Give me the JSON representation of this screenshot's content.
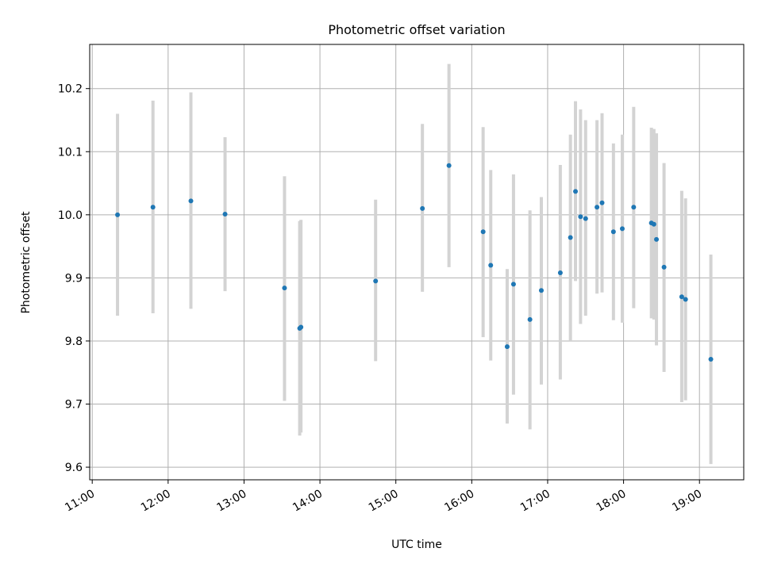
{
  "chart_data": {
    "type": "scatter",
    "title": "Photometric offset variation",
    "xlabel": "UTC time",
    "ylabel": "Photometric offset",
    "grid": true,
    "xlim": [
      "10:58",
      "19:35"
    ],
    "ylim": [
      9.58,
      10.27
    ],
    "x_ticks": [
      "11:00",
      "12:00",
      "13:00",
      "14:00",
      "15:00",
      "16:00",
      "17:00",
      "18:00",
      "19:00"
    ],
    "y_ticks": [
      "9.6",
      "9.7",
      "9.8",
      "9.9",
      "10.0",
      "10.1",
      "10.2"
    ],
    "point_color": "#1f77b4",
    "errorbar_color": "#d3d3d3",
    "points": [
      {
        "t": "11:20",
        "y": 10.0,
        "lo": 9.84,
        "hi": 10.16
      },
      {
        "t": "11:48",
        "y": 10.012,
        "lo": 9.844,
        "hi": 10.181
      },
      {
        "t": "12:18",
        "y": 10.022,
        "lo": 9.851,
        "hi": 10.194
      },
      {
        "t": "12:45",
        "y": 10.001,
        "lo": 9.879,
        "hi": 10.123
      },
      {
        "t": "13:32",
        "y": 9.884,
        "lo": 9.705,
        "hi": 10.061
      },
      {
        "t": "13:44",
        "y": 9.82,
        "lo": 9.65,
        "hi": 9.99
      },
      {
        "t": "13:45",
        "y": 9.822,
        "lo": 9.655,
        "hi": 9.992
      },
      {
        "t": "14:44",
        "y": 9.895,
        "lo": 9.768,
        "hi": 10.024
      },
      {
        "t": "15:21",
        "y": 10.01,
        "lo": 9.878,
        "hi": 10.144
      },
      {
        "t": "15:42",
        "y": 10.078,
        "lo": 9.917,
        "hi": 10.239
      },
      {
        "t": "16:09",
        "y": 9.973,
        "lo": 9.806,
        "hi": 10.139
      },
      {
        "t": "16:15",
        "y": 9.92,
        "lo": 9.769,
        "hi": 10.071
      },
      {
        "t": "16:28",
        "y": 9.791,
        "lo": 9.669,
        "hi": 9.914
      },
      {
        "t": "16:33",
        "y": 9.89,
        "lo": 9.715,
        "hi": 10.064
      },
      {
        "t": "16:46",
        "y": 9.834,
        "lo": 9.66,
        "hi": 10.007
      },
      {
        "t": "16:55",
        "y": 9.88,
        "lo": 9.731,
        "hi": 10.028
      },
      {
        "t": "17:10",
        "y": 9.908,
        "lo": 9.739,
        "hi": 10.079
      },
      {
        "t": "17:18",
        "y": 9.964,
        "lo": 9.801,
        "hi": 10.127
      },
      {
        "t": "17:22",
        "y": 10.037,
        "lo": 9.895,
        "hi": 10.18
      },
      {
        "t": "17:26",
        "y": 9.997,
        "lo": 9.827,
        "hi": 10.167
      },
      {
        "t": "17:30",
        "y": 9.994,
        "lo": 9.84,
        "hi": 10.15
      },
      {
        "t": "17:39",
        "y": 10.012,
        "lo": 9.875,
        "hi": 10.15
      },
      {
        "t": "17:43",
        "y": 10.019,
        "lo": 9.877,
        "hi": 10.161
      },
      {
        "t": "17:52",
        "y": 9.973,
        "lo": 9.833,
        "hi": 10.113
      },
      {
        "t": "17:59",
        "y": 9.978,
        "lo": 9.829,
        "hi": 10.127
      },
      {
        "t": "18:08",
        "y": 10.012,
        "lo": 9.852,
        "hi": 10.171
      },
      {
        "t": "18:22",
        "y": 9.987,
        "lo": 9.836,
        "hi": 10.138
      },
      {
        "t": "18:24",
        "y": 9.985,
        "lo": 9.834,
        "hi": 10.136
      },
      {
        "t": "18:26",
        "y": 9.961,
        "lo": 9.793,
        "hi": 10.129
      },
      {
        "t": "18:32",
        "y": 9.917,
        "lo": 9.751,
        "hi": 10.082
      },
      {
        "t": "18:46",
        "y": 9.87,
        "lo": 9.703,
        "hi": 10.038
      },
      {
        "t": "18:49",
        "y": 9.866,
        "lo": 9.706,
        "hi": 10.026
      },
      {
        "t": "19:09",
        "y": 9.771,
        "lo": 9.605,
        "hi": 9.937
      }
    ]
  }
}
